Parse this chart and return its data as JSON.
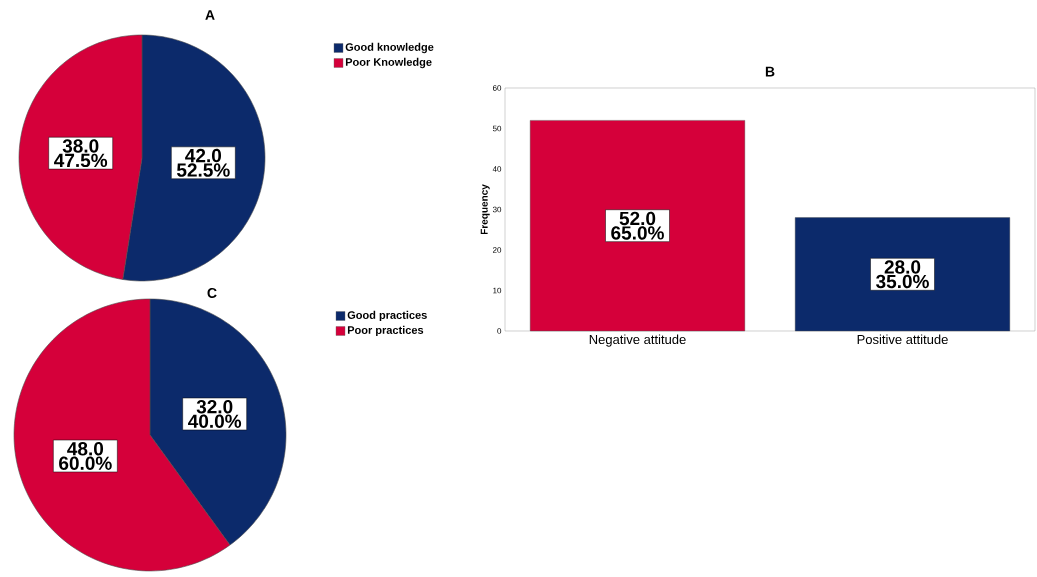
{
  "chart_data": [
    {
      "type": "pie",
      "title": "A",
      "categories": [
        "Good knowledge",
        "Poor Knowledge"
      ],
      "values": [
        42,
        38
      ],
      "colors": [
        "#0c2a6b",
        "#d5003a"
      ],
      "value_labels": [
        "42.0 52.5%",
        "38.0 47.5%"
      ],
      "legend": "top right"
    },
    {
      "type": "bar",
      "title": "B",
      "ylabel": "Frequency",
      "categories": [
        "Negative attitude",
        "Positive attitude"
      ],
      "values": [
        52,
        28
      ],
      "colors": [
        "#d5003a",
        "#0c2a6b"
      ],
      "value_labels": [
        "52.0 65.0%",
        "28.0 35.0%"
      ],
      "ylim": [
        0,
        60
      ],
      "yticks": [
        0,
        10,
        20,
        30,
        40,
        50,
        60
      ]
    },
    {
      "type": "pie",
      "title": "C",
      "categories": [
        "Good practices",
        "Poor practices"
      ],
      "values": [
        32,
        48
      ],
      "colors": [
        "#0c2a6b",
        "#d5003a"
      ],
      "value_labels": [
        "32.0 40.0%",
        "48.0 60.0%"
      ],
      "legend": "top right"
    }
  ]
}
